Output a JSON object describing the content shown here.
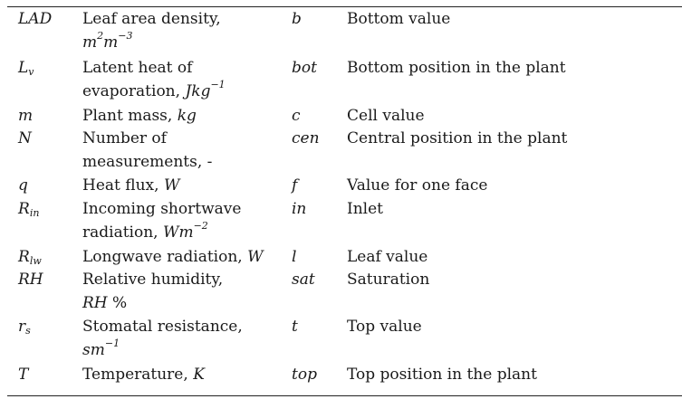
{
  "rows": [
    {
      "sym1": "LAD",
      "desc1_line1": "Leaf area density,",
      "desc1_line2_a": "m",
      "desc1_line2_sup_a": "2",
      "desc1_line2_b": "m",
      "desc1_line2_sup_b": "−3",
      "sym2": "b",
      "desc2": "Bottom value"
    },
    {
      "sym1_base": "L",
      "sym1_sub": "v",
      "desc1_line1": "Latent heat of",
      "desc1_line2_text": "evaporation, ",
      "desc1_line2_unit": "Jkg",
      "desc1_line2_sup": "−1",
      "sym2": "bot",
      "desc2": "Bottom position in the plant"
    },
    {
      "sym1": "m",
      "desc1_text": "Plant mass, ",
      "desc1_unit": "kg",
      "sym2": "c",
      "desc2": "Cell value"
    },
    {
      "sym1": "N",
      "desc1_line1": "Number of",
      "desc1_line2": "measurements, -",
      "sym2": "cen",
      "desc2": "Central position in the plant"
    },
    {
      "sym1": "q",
      "desc1_text": "Heat flux, ",
      "desc1_unit": "W",
      "sym2": "f",
      "desc2": "Value for one face"
    },
    {
      "sym1_base": "R",
      "sym1_sub": "in",
      "desc1_line1": "Incoming shortwave",
      "desc1_line2_text": "radiation, ",
      "desc1_line2_unit": "Wm",
      "desc1_line2_sup": "−2",
      "sym2": "in",
      "desc2": "Inlet"
    },
    {
      "sym1_base": "R",
      "sym1_sub": "lw",
      "desc1_text": "Longwave radiation, ",
      "desc1_unit": "W",
      "sym2": "l",
      "desc2": "Leaf value"
    },
    {
      "sym1": "RH",
      "desc1_line1": "Relative humidity,",
      "desc1_line2_unit": "RH",
      "desc1_line2_text": " %",
      "sym2": "sat",
      "desc2": "Saturation"
    },
    {
      "sym1_base": "r",
      "sym1_sub": "s",
      "desc1_line1": "Stomatal resistance,",
      "desc1_line2_unit": "sm",
      "desc1_line2_sup": "−1",
      "sym2": "t",
      "desc2": "Top value"
    },
    {
      "sym1": "T",
      "desc1_text": "Temperature, ",
      "desc1_unit": "K",
      "sym2": "top",
      "desc2": "Top position in the plant"
    }
  ]
}
